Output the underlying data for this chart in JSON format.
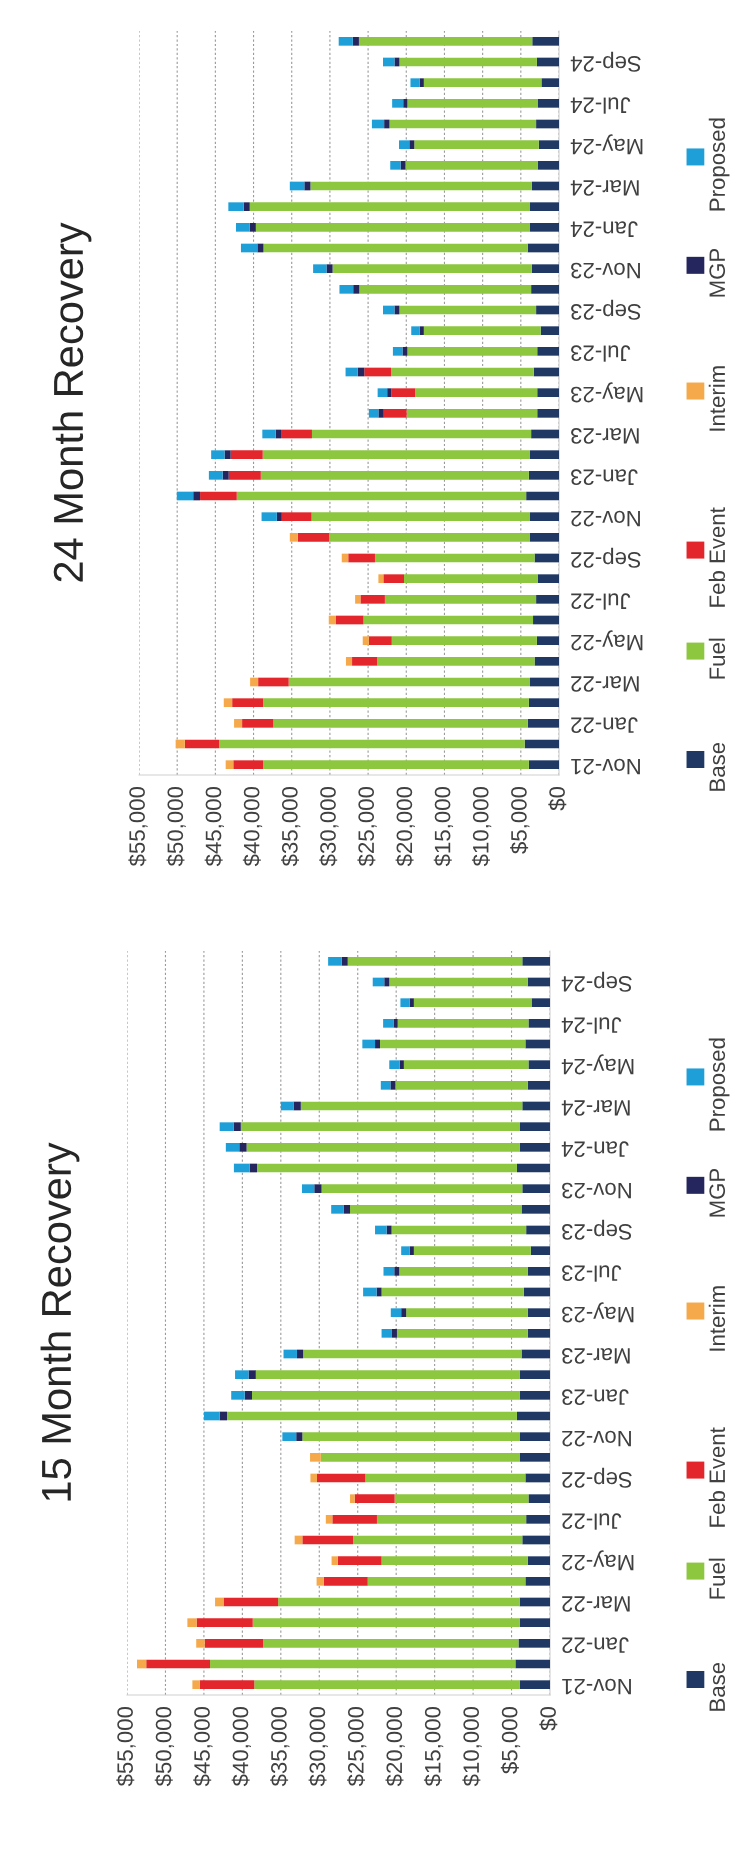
{
  "chart_data": [
    {
      "type": "bar",
      "title": "24 Month Recovery",
      "orientation": "horizontal",
      "stacked": true,
      "categories": [
        null,
        "Sep-24",
        null,
        "Jul-24",
        null,
        "May-24",
        null,
        "Mar-24",
        null,
        "Jan-24",
        null,
        "Nov-23",
        null,
        "Sep-23",
        null,
        "Jul-23",
        null,
        "May-23",
        null,
        "Mar-23",
        null,
        "Jan-23",
        null,
        "Nov-22",
        null,
        "Sep-22",
        null,
        "Jul-22",
        null,
        "May-22",
        null,
        "Mar-22",
        null,
        "Jan-22",
        null,
        "Nov-21"
      ],
      "series": [
        {
          "name": "Base",
          "color": "#1f3864",
          "values": [
            3500,
            2900,
            2300,
            2750,
            3000,
            2650,
            2800,
            3550,
            3800,
            3800,
            4100,
            3550,
            3650,
            3000,
            2400,
            2850,
            3300,
            2850,
            2850,
            3650,
            3800,
            3950,
            4300,
            3800,
            3800,
            3200,
            2800,
            3000,
            3400,
            2900,
            3200,
            3800,
            3950,
            4100,
            4500,
            3950
          ]
        },
        {
          "name": "Fuel",
          "color": "#8dc63f",
          "values": [
            22700,
            18000,
            15400,
            17100,
            19200,
            16300,
            17300,
            29000,
            36700,
            35900,
            34600,
            26100,
            22500,
            17900,
            15300,
            17000,
            18700,
            16000,
            17100,
            28700,
            35000,
            35100,
            37900,
            28600,
            26300,
            20900,
            17500,
            19800,
            22200,
            19000,
            20600,
            31600,
            34800,
            33300,
            40000,
            34800
          ]
        },
        {
          "name": "Feb Event",
          "color": "#e3262b",
          "values": [
            null,
            null,
            null,
            null,
            null,
            null,
            null,
            null,
            null,
            null,
            null,
            null,
            null,
            null,
            null,
            null,
            3500,
            3100,
            3000,
            4050,
            4200,
            4200,
            4800,
            3900,
            4100,
            3500,
            2700,
            3200,
            3600,
            3000,
            3300,
            4000,
            4050,
            4100,
            4500,
            3900
          ]
        },
        {
          "name": "Interim",
          "color": "#f5a94a",
          "values": [
            null,
            null,
            null,
            null,
            null,
            null,
            null,
            null,
            null,
            null,
            null,
            null,
            null,
            null,
            null,
            null,
            null,
            null,
            null,
            null,
            null,
            null,
            null,
            null,
            1050,
            850,
            650,
            700,
            950,
            800,
            800,
            1050,
            1100,
            1050,
            1200,
            1000
          ]
        },
        {
          "name": "MGP",
          "color": "#26265e",
          "values": [
            800,
            650,
            550,
            550,
            700,
            650,
            650,
            800,
            800,
            800,
            800,
            800,
            800,
            650,
            550,
            650,
            850,
            550,
            700,
            700,
            800,
            800,
            900,
            650,
            null,
            null,
            null,
            null,
            null,
            null,
            null,
            null,
            null,
            null,
            null,
            null
          ]
        },
        {
          "name": "Proposed",
          "color": "#1f9fd8",
          "values": [
            1850,
            1500,
            1200,
            1450,
            1600,
            1350,
            1350,
            1900,
            2000,
            1800,
            2150,
            1750,
            1800,
            1500,
            1100,
            1250,
            1600,
            1250,
            1250,
            1750,
            1750,
            1800,
            2150,
            2000,
            null,
            null,
            null,
            null,
            null,
            null,
            null,
            null,
            null,
            null,
            null,
            null
          ]
        }
      ],
      "xlim": [
        55000,
        0
      ],
      "xticks": [
        {
          "value": 55000,
          "label": "$55,000"
        },
        {
          "value": 50000,
          "label": "$50,000"
        },
        {
          "value": 45000,
          "label": "$45,000"
        },
        {
          "value": 40000,
          "label": "$40,000"
        },
        {
          "value": 35000,
          "label": "$35,000"
        },
        {
          "value": 30000,
          "label": "$30,000"
        },
        {
          "value": 25000,
          "label": "$25,000"
        },
        {
          "value": 20000,
          "label": "$20,000"
        },
        {
          "value": 15000,
          "label": "$15,000"
        },
        {
          "value": 10000,
          "label": "$10,000"
        },
        {
          "value": 5000,
          "label": "$5,000"
        },
        {
          "value": 0,
          "label": "$0"
        }
      ],
      "grid": "x",
      "legend": "right"
    },
    {
      "type": "bar",
      "title": "15 Month Recovery",
      "orientation": "horizontal",
      "stacked": true,
      "categories": [
        null,
        "Sep-24",
        null,
        "Jul-24",
        null,
        "May-24",
        null,
        "Mar-24",
        null,
        "Jan-24",
        null,
        "Nov-23",
        null,
        "Sep-23",
        null,
        "Jul-23",
        null,
        "May-23",
        null,
        "Mar-23",
        null,
        "Jan-23",
        null,
        "Nov-22",
        null,
        "Sep-22",
        null,
        "Jul-22",
        null,
        "May-22",
        null,
        "Mar-22",
        null,
        "Jan-22",
        null,
        "Nov-21"
      ],
      "series": [
        {
          "name": "Base",
          "color": "#1f3864",
          "values": [
            3600,
            2900,
            2400,
            2800,
            3200,
            2800,
            2900,
            3600,
            3900,
            3950,
            4300,
            3600,
            3700,
            3100,
            2500,
            2900,
            3400,
            2900,
            2900,
            3700,
            3950,
            3950,
            4300,
            3900,
            3900,
            3200,
            2800,
            3100,
            3600,
            2900,
            3200,
            3950,
            3950,
            4100,
            4500,
            3950
          ]
        },
        {
          "name": "Fuel",
          "color": "#8dc63f",
          "values": [
            22700,
            18000,
            15300,
            17000,
            18900,
            16200,
            17200,
            28800,
            36300,
            35500,
            33800,
            26100,
            22300,
            17500,
            15200,
            16700,
            18500,
            15800,
            17000,
            28400,
            34300,
            34800,
            37700,
            28300,
            25900,
            20800,
            17400,
            19400,
            22000,
            19000,
            20500,
            31400,
            34700,
            33200,
            39700,
            34500
          ]
        },
        {
          "name": "Feb Event",
          "color": "#e3262b",
          "values": [
            null,
            null,
            null,
            null,
            null,
            null,
            null,
            null,
            null,
            null,
            null,
            null,
            null,
            null,
            null,
            null,
            null,
            null,
            null,
            null,
            null,
            null,
            null,
            null,
            null,
            6300,
            5200,
            5800,
            6600,
            5700,
            5700,
            7100,
            7300,
            7600,
            8300,
            7100
          ]
        },
        {
          "name": "Interim",
          "color": "#f5a94a",
          "values": [
            null,
            null,
            null,
            null,
            null,
            null,
            null,
            null,
            null,
            null,
            null,
            null,
            null,
            null,
            null,
            null,
            null,
            null,
            null,
            null,
            null,
            null,
            null,
            null,
            1400,
            850,
            600,
            850,
            1000,
            800,
            950,
            1100,
            1200,
            1100,
            1200,
            950
          ]
        },
        {
          "name": "MGP",
          "color": "#26265e",
          "values": [
            800,
            650,
            550,
            550,
            650,
            550,
            650,
            950,
            950,
            950,
            950,
            950,
            800,
            650,
            550,
            650,
            650,
            650,
            650,
            800,
            950,
            950,
            950,
            800,
            null,
            null,
            null,
            null,
            null,
            null,
            null,
            null,
            null,
            null,
            null,
            null
          ]
        },
        {
          "name": "Proposed",
          "color": "#1f9fd8",
          "values": [
            1750,
            1500,
            1200,
            1350,
            1650,
            1350,
            1250,
            1650,
            1800,
            1750,
            2050,
            1600,
            1650,
            1500,
            1100,
            1400,
            1750,
            1350,
            1350,
            1750,
            1750,
            1750,
            2050,
            1800,
            null,
            null,
            null,
            null,
            null,
            null,
            null,
            null,
            null,
            null,
            null,
            null
          ]
        }
      ],
      "xlim": [
        55000,
        0
      ],
      "xticks": [
        {
          "value": 55000,
          "label": "$55,000"
        },
        {
          "value": 50000,
          "label": "$50,000"
        },
        {
          "value": 45000,
          "label": "$45,000"
        },
        {
          "value": 40000,
          "label": "$40,000"
        },
        {
          "value": 35000,
          "label": "$35,000"
        },
        {
          "value": 30000,
          "label": "$30,000"
        },
        {
          "value": 25000,
          "label": "$25,000"
        },
        {
          "value": 20000,
          "label": "$20,000"
        },
        {
          "value": 15000,
          "label": "$15,000"
        },
        {
          "value": 10000,
          "label": "$10,000"
        },
        {
          "value": 5000,
          "label": "$5,000"
        },
        {
          "value": 0,
          "label": "$0"
        }
      ],
      "grid": "x",
      "legend": "right"
    }
  ]
}
